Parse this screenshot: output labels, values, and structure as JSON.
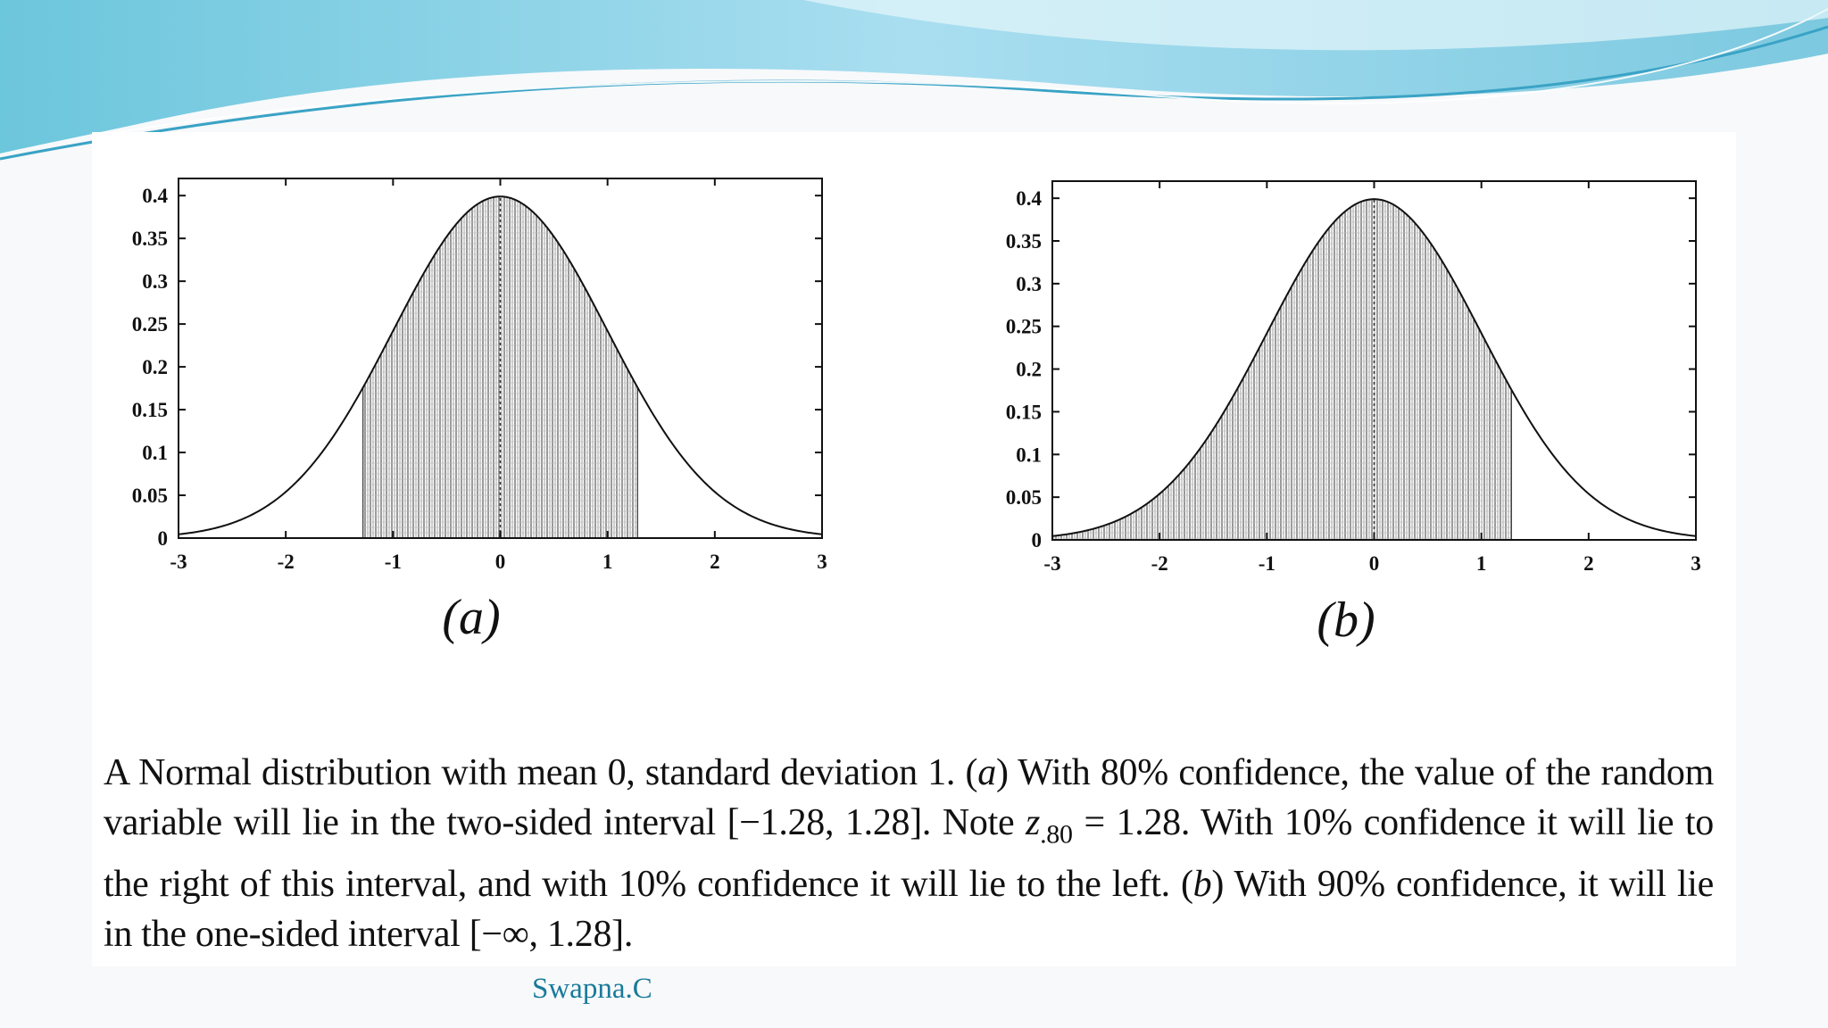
{
  "chart_data": [
    {
      "type": "area",
      "panel_label": "(a)",
      "distribution": {
        "name": "Normal",
        "mean": 0,
        "sd": 1
      },
      "xlim": [
        -3,
        3
      ],
      "ylim": [
        0,
        0.42
      ],
      "x_ticks": [
        "-3",
        "-2",
        "-1",
        "0",
        "1",
        "2",
        "3"
      ],
      "y_ticks": [
        "0",
        "0.05",
        "0.1",
        "0.15",
        "0.2",
        "0.25",
        "0.3",
        "0.35",
        "0.4"
      ],
      "shaded_interval": [
        -1.28,
        1.28
      ],
      "mean_line": 0
    },
    {
      "type": "area",
      "panel_label": "(b)",
      "distribution": {
        "name": "Normal",
        "mean": 0,
        "sd": 1
      },
      "xlim": [
        -3,
        3
      ],
      "ylim": [
        0,
        0.42
      ],
      "x_ticks": [
        "-3",
        "-2",
        "-1",
        "0",
        "1",
        "2",
        "3"
      ],
      "y_ticks": [
        "0",
        "0.05",
        "0.1",
        "0.15",
        "0.2",
        "0.25",
        "0.3",
        "0.35",
        "0.4"
      ],
      "shaded_interval": [
        -3,
        1.28
      ],
      "mean_line": 0
    }
  ],
  "caption": {
    "l1a": "A Normal distribution with mean 0, standard deviation 1. (",
    "l1b": "a",
    "l1c": ") With 80% confidence, the value of the random variable will lie in the two-sided interval [−1.28, 1.28]. Note ",
    "l1d": "z",
    "l1e": ".80",
    "l1f": " = 1.28. With 10% confidence it will lie to the right of this interval, and with 10% confidence it will lie to the left. (",
    "l1g": "b",
    "l1h": ") With 90% confidence, it will lie in the one-sided interval [−∞, 1.28]."
  },
  "author": "Swapna.C",
  "colors": {
    "banner_dark": "#5bbcd8",
    "banner_light": "#bfe6f1",
    "author": "#1a7a9a"
  }
}
